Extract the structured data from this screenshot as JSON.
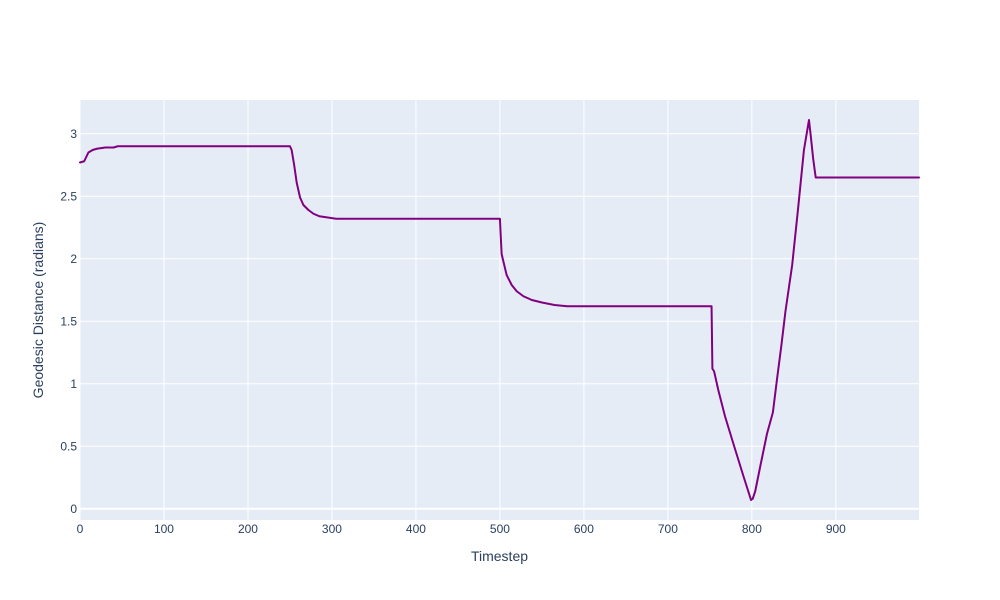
{
  "chart_data": {
    "type": "line",
    "title": "",
    "xlabel": "Timestep",
    "ylabel": "Geodesic Distance (radians)",
    "xlim": [
      0,
      999
    ],
    "ylim": [
      -0.09,
      3.27
    ],
    "x_ticks": [
      0,
      100,
      200,
      300,
      400,
      500,
      600,
      700,
      800,
      900
    ],
    "y_ticks": [
      0,
      0.5,
      1,
      1.5,
      2,
      2.5,
      3
    ],
    "y_tick_labels": [
      "0",
      "0.5",
      "1",
      "1.5",
      "2",
      "2.5",
      "3"
    ],
    "grid": true,
    "legend": "none",
    "colors": {
      "plot_bg": "#e5ecf6",
      "grid": "#ffffff",
      "line": "#800080",
      "text": "#2a3f5f"
    },
    "series": [
      {
        "x": [
          0,
          5,
          10,
          15,
          20,
          30,
          40,
          45,
          100,
          150,
          200,
          250,
          252,
          255,
          258,
          262,
          266,
          272,
          278,
          285,
          295,
          305,
          315,
          400,
          500,
          502,
          503,
          508,
          514,
          520,
          528,
          538,
          550,
          565,
          580,
          600,
          650,
          700,
          752,
          753,
          755,
          760,
          768,
          778,
          790,
          799,
          801,
          804,
          810,
          818,
          825,
          830,
          835,
          840,
          848,
          855,
          862,
          868,
          870,
          873,
          876,
          900,
          999
        ],
        "y": [
          2.77,
          2.78,
          2.85,
          2.87,
          2.88,
          2.89,
          2.89,
          2.9,
          2.9,
          2.9,
          2.9,
          2.9,
          2.87,
          2.75,
          2.61,
          2.49,
          2.43,
          2.39,
          2.36,
          2.34,
          2.33,
          2.32,
          2.32,
          2.32,
          2.32,
          2.04,
          2.01,
          1.87,
          1.79,
          1.74,
          1.7,
          1.67,
          1.65,
          1.63,
          1.62,
          1.62,
          1.62,
          1.62,
          1.62,
          1.12,
          1.1,
          0.95,
          0.74,
          0.52,
          0.26,
          0.07,
          0.08,
          0.14,
          0.34,
          0.6,
          0.77,
          1.04,
          1.3,
          1.58,
          1.95,
          2.4,
          2.87,
          3.11,
          2.99,
          2.8,
          2.65,
          2.65,
          2.65
        ]
      }
    ]
  }
}
